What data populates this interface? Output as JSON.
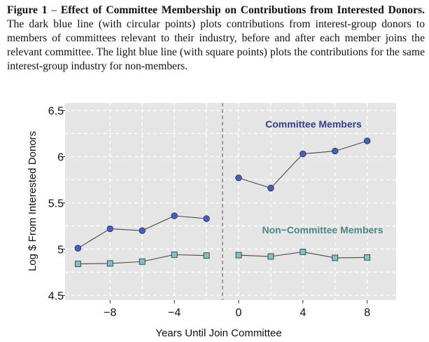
{
  "caption": {
    "figure_label": "Figure 1",
    "separator": " – ",
    "title": "Effect of Committee Membership on Contributions from Interested Donors.",
    "text": "The dark blue line (with circular points) plots contributions from interest-group donors to members of committees relevant to their industry, before and after each member joins the relevant committee. The light blue line (with square points) plots the contributions for the same interest-group industry for non-members."
  },
  "chart_data": {
    "type": "line",
    "xlabel": "Years Until Join Committee",
    "ylabel": "Log $ From Interested Donors",
    "xlim": [
      -10.8,
      9.8
    ],
    "ylim": [
      4.45,
      6.58
    ],
    "x_ticks": [
      -8,
      -4,
      0,
      4,
      8
    ],
    "x_tick_labels": [
      "−8",
      "−4",
      "0",
      "4",
      "8"
    ],
    "y_ticks": [
      4.5,
      5,
      5.5,
      6,
      6.5
    ],
    "y_tick_labels": [
      "4.5",
      "5",
      "5.5",
      "6",
      "6.5"
    ],
    "vline_x": -1,
    "grid": true,
    "legend": "inline labels",
    "series": [
      {
        "name": "Committee Members",
        "marker": "circle",
        "color": "#3f5fcf",
        "label_color": "#2c3f8f",
        "segments": [
          {
            "x": [
              -10,
              -8,
              -6,
              -4,
              -2
            ],
            "y": [
              5.01,
              5.22,
              5.2,
              5.36,
              5.33
            ]
          },
          {
            "x": [
              0,
              2,
              4,
              6,
              8
            ],
            "y": [
              5.77,
              5.66,
              6.03,
              6.06,
              6.17
            ]
          }
        ]
      },
      {
        "name": "Non−Committee Members",
        "marker": "square",
        "color": "#7cc3cc",
        "label_color": "#4f8585",
        "segments": [
          {
            "x": [
              -10,
              -8,
              -6,
              -4,
              -2
            ],
            "y": [
              4.84,
              4.845,
              4.865,
              4.94,
              4.93
            ]
          },
          {
            "x": [
              0,
              2,
              4,
              6,
              8
            ],
            "y": [
              4.935,
              4.92,
              4.97,
              4.905,
              4.91
            ]
          }
        ]
      }
    ]
  }
}
